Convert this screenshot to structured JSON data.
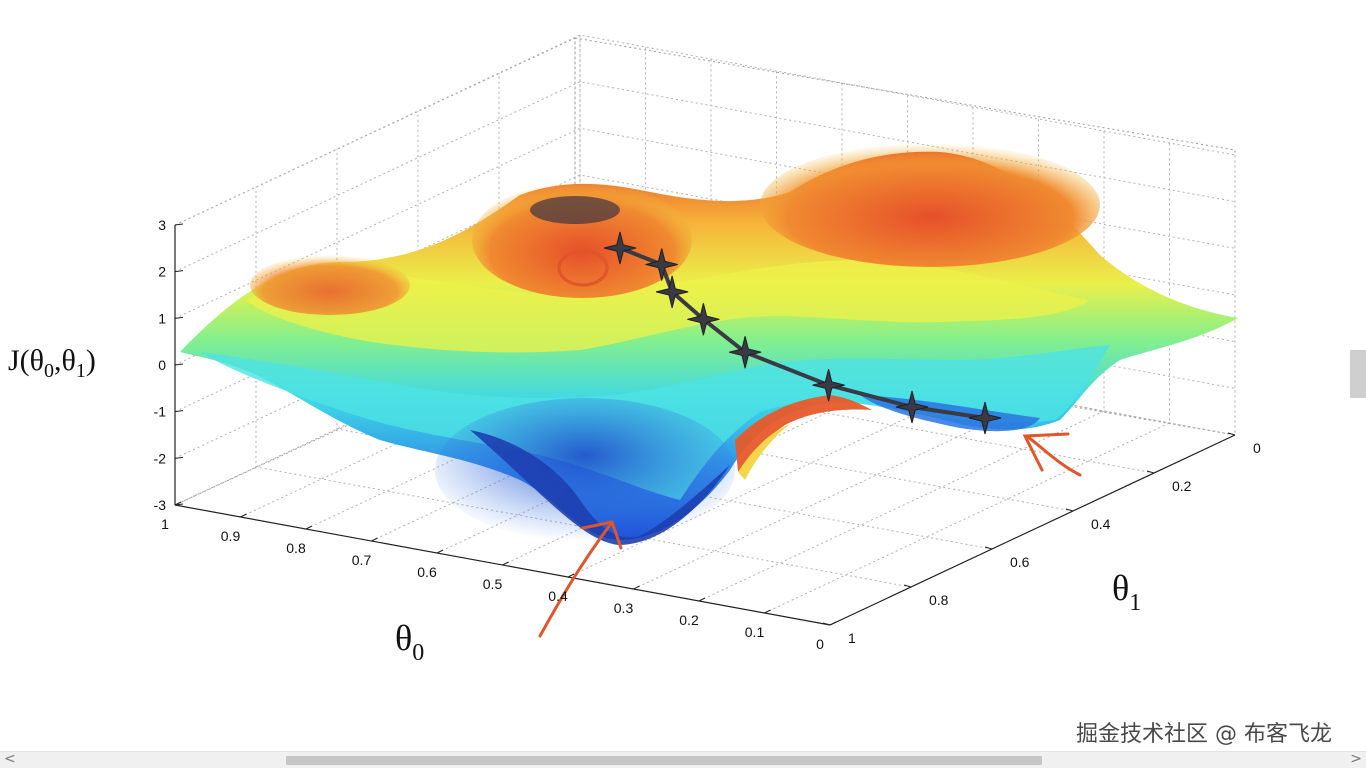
{
  "chart_data": {
    "type": "surface",
    "title": "",
    "zlabel": "J(θ0,θ1)",
    "xlabel": "θ0",
    "ylabel": "θ1",
    "axis_titles": {
      "z": {
        "main": "J(θ",
        "sub1": "0",
        "mid": ",θ",
        "sub2": "1",
        "end": ")"
      },
      "x": {
        "main": "θ",
        "sub": "0"
      },
      "y": {
        "main": "θ",
        "sub": "1"
      }
    },
    "x_ticks": [
      "1",
      "0.9",
      "0.8",
      "0.7",
      "0.6",
      "0.5",
      "0.4",
      "0.3",
      "0.2",
      "0.1",
      "0"
    ],
    "y_ticks": [
      "0",
      "0.2",
      "0.4",
      "0.6",
      "0.8",
      "1"
    ],
    "z_ticks": [
      "3",
      "2",
      "1",
      "0",
      "-1",
      "-2",
      "-3"
    ],
    "xlim": [
      0,
      1
    ],
    "ylim": [
      0,
      1
    ],
    "zlim": [
      -3,
      3
    ],
    "grid": true,
    "colormap": [
      "#1f4fd8",
      "#2f8ee8",
      "#3fd8e6",
      "#86f08a",
      "#eaf04a",
      "#f6b23a",
      "#e84a26"
    ],
    "gradient_path": {
      "points": [
        {
          "theta0": 0.25,
          "theta1": 0.05,
          "J": -1.2
        },
        {
          "theta0": 0.32,
          "theta1": 0.12,
          "J": -1.0
        },
        {
          "theta0": 0.4,
          "theta1": 0.2,
          "J": -0.6
        },
        {
          "theta0": 0.48,
          "theta1": 0.28,
          "J": 0.0
        },
        {
          "theta0": 0.52,
          "theta1": 0.36,
          "J": 0.6
        },
        {
          "theta0": 0.55,
          "theta1": 0.45,
          "J": 1.1
        },
        {
          "theta0": 0.56,
          "theta1": 0.52,
          "J": 1.6
        },
        {
          "theta0": 0.6,
          "theta1": 0.55,
          "J": 1.9
        }
      ],
      "color": "#3a3a44"
    },
    "annotation_color": "#e0552a"
  },
  "watermark": "掘金技术社区 @ 布客飞龙",
  "scrollbar": {
    "left_arrow": "<",
    "right_arrow": ">"
  }
}
